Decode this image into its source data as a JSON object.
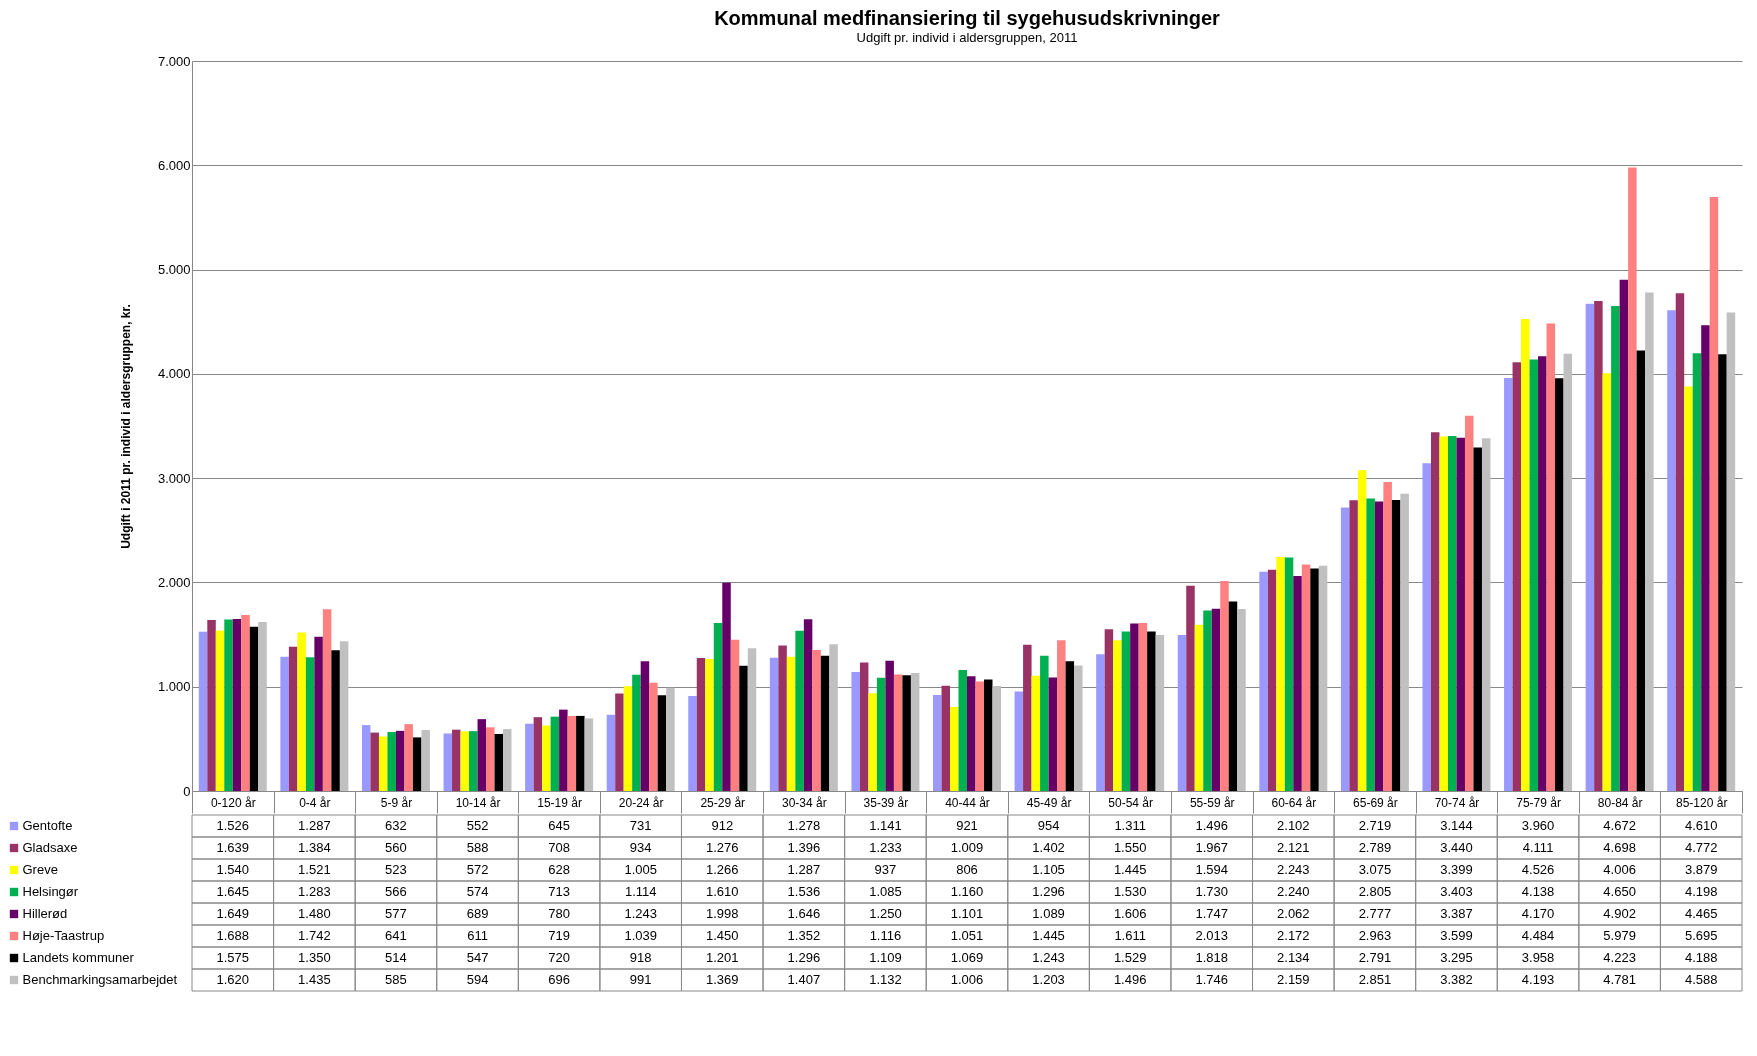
{
  "chart_data": {
    "type": "bar",
    "title": "Kommunal medfinansiering til sygehusudskrivninger",
    "subtitle": "Udgift pr. individ i aldersgruppen, 2011",
    "ylabel": "Udgift i 2011 pr. individ i aldersgruppen, kr.",
    "categories": [
      "0-120 år",
      "0-4 år",
      "5-9 år",
      "10-14 år",
      "15-19 år",
      "20-24 år",
      "25-29 år",
      "30-34 år",
      "35-39 år",
      "40-44 år",
      "45-49 år",
      "50-54 år",
      "55-59 år",
      "60-64 år",
      "65-69 år",
      "70-74 år",
      "75-79 år",
      "80-84 år",
      "85-120 år"
    ],
    "series": [
      {
        "name": "Gentofte",
        "color": "#9999ff",
        "values": [
          1526,
          1287,
          632,
          552,
          645,
          731,
          912,
          1278,
          1141,
          921,
          954,
          1311,
          1496,
          2102,
          2719,
          3144,
          3960,
          4672,
          4610
        ],
        "value_labels": [
          "1.526",
          "1.287",
          "632",
          "552",
          "645",
          "731",
          "912",
          "1.278",
          "1.141",
          "921",
          "954",
          "1.311",
          "1.496",
          "2.102",
          "2.719",
          "3.144",
          "3.960",
          "4.672",
          "4.610"
        ]
      },
      {
        "name": "Gladsaxe",
        "color": "#993366",
        "values": [
          1639,
          1384,
          560,
          588,
          708,
          934,
          1276,
          1396,
          1233,
          1009,
          1402,
          1550,
          1967,
          2121,
          2789,
          3440,
          4111,
          4698,
          4772
        ],
        "value_labels": [
          "1.639",
          "1.384",
          "560",
          "588",
          "708",
          "934",
          "1.276",
          "1.396",
          "1.233",
          "1.009",
          "1.402",
          "1.550",
          "1.967",
          "2.121",
          "2.789",
          "3.440",
          "4.111",
          "4.698",
          "4.772"
        ]
      },
      {
        "name": "Greve",
        "color": "#ffff00",
        "values": [
          1540,
          1521,
          523,
          572,
          628,
          1005,
          1266,
          1287,
          937,
          806,
          1105,
          1445,
          1594,
          2243,
          3075,
          3399,
          4526,
          4006,
          3879
        ],
        "value_labels": [
          "1.540",
          "1.521",
          "523",
          "572",
          "628",
          "1.005",
          "1.266",
          "1.287",
          "937",
          "806",
          "1.105",
          "1.445",
          "1.594",
          "2.243",
          "3.075",
          "3.399",
          "4.526",
          "4.006",
          "3.879"
        ]
      },
      {
        "name": "Helsingør",
        "color": "#00b050",
        "values": [
          1645,
          1283,
          566,
          574,
          713,
          1114,
          1610,
          1536,
          1085,
          1160,
          1296,
          1530,
          1730,
          2240,
          2805,
          3403,
          4138,
          4650,
          4198
        ],
        "value_labels": [
          "1.645",
          "1.283",
          "566",
          "574",
          "713",
          "1.114",
          "1.610",
          "1.536",
          "1.085",
          "1.160",
          "1.296",
          "1.530",
          "1.730",
          "2.240",
          "2.805",
          "3.403",
          "4.138",
          "4.650",
          "4.198"
        ]
      },
      {
        "name": "Hillerød",
        "color": "#660066",
        "values": [
          1649,
          1480,
          577,
          689,
          780,
          1243,
          1998,
          1646,
          1250,
          1101,
          1089,
          1606,
          1747,
          2062,
          2777,
          3387,
          4170,
          4902,
          4465
        ],
        "value_labels": [
          "1.649",
          "1.480",
          "577",
          "689",
          "780",
          "1.243",
          "1.998",
          "1.646",
          "1.250",
          "1.101",
          "1.089",
          "1.606",
          "1.747",
          "2.062",
          "2.777",
          "3.387",
          "4.170",
          "4.902",
          "4.465"
        ]
      },
      {
        "name": "Høje-Taastrup",
        "color": "#ff8080",
        "values": [
          1688,
          1742,
          641,
          611,
          719,
          1039,
          1450,
          1352,
          1116,
          1051,
          1445,
          1611,
          2013,
          2172,
          2963,
          3599,
          4484,
          5979,
          5695
        ],
        "value_labels": [
          "1.688",
          "1.742",
          "641",
          "611",
          "719",
          "1.039",
          "1.450",
          "1.352",
          "1.116",
          "1.051",
          "1.445",
          "1.611",
          "2.013",
          "2.172",
          "2.963",
          "3.599",
          "4.484",
          "5.979",
          "5.695"
        ]
      },
      {
        "name": "Landets kommuner",
        "color": "#000000",
        "values": [
          1575,
          1350,
          514,
          547,
          720,
          918,
          1201,
          1296,
          1109,
          1069,
          1243,
          1529,
          1818,
          2134,
          2791,
          3295,
          3958,
          4223,
          4188
        ],
        "value_labels": [
          "1.575",
          "1.350",
          "514",
          "547",
          "720",
          "918",
          "1.201",
          "1.296",
          "1.109",
          "1.069",
          "1.243",
          "1.529",
          "1.818",
          "2.134",
          "2.791",
          "3.295",
          "3.958",
          "4.223",
          "4.188"
        ]
      },
      {
        "name": "Benchmarkingsamarbejdet",
        "color": "#c0c0c0",
        "values": [
          1620,
          1435,
          585,
          594,
          696,
          991,
          1369,
          1407,
          1132,
          1006,
          1203,
          1496,
          1746,
          2159,
          2851,
          3382,
          4193,
          4781,
          4588
        ],
        "value_labels": [
          "1.620",
          "1.435",
          "585",
          "594",
          "696",
          "991",
          "1.369",
          "1.407",
          "1.132",
          "1.006",
          "1.203",
          "1.496",
          "1.746",
          "2.159",
          "2.851",
          "3.382",
          "4.193",
          "4.781",
          "4.588"
        ]
      }
    ],
    "ylim": [
      0,
      7000
    ],
    "yticks": [
      0,
      {
        "value": 1000,
        "label": "1.000"
      },
      {
        "value": 2000,
        "label": "2.000"
      },
      {
        "value": 3000,
        "label": "3.000"
      },
      {
        "value": 4000,
        "label": "4.000"
      },
      {
        "value": 5000,
        "label": "5.000"
      },
      {
        "value": 6000,
        "label": "6.000"
      },
      {
        "value": 7000,
        "label": "7.000"
      }
    ],
    "grid": "y",
    "legend": "bottom left"
  }
}
